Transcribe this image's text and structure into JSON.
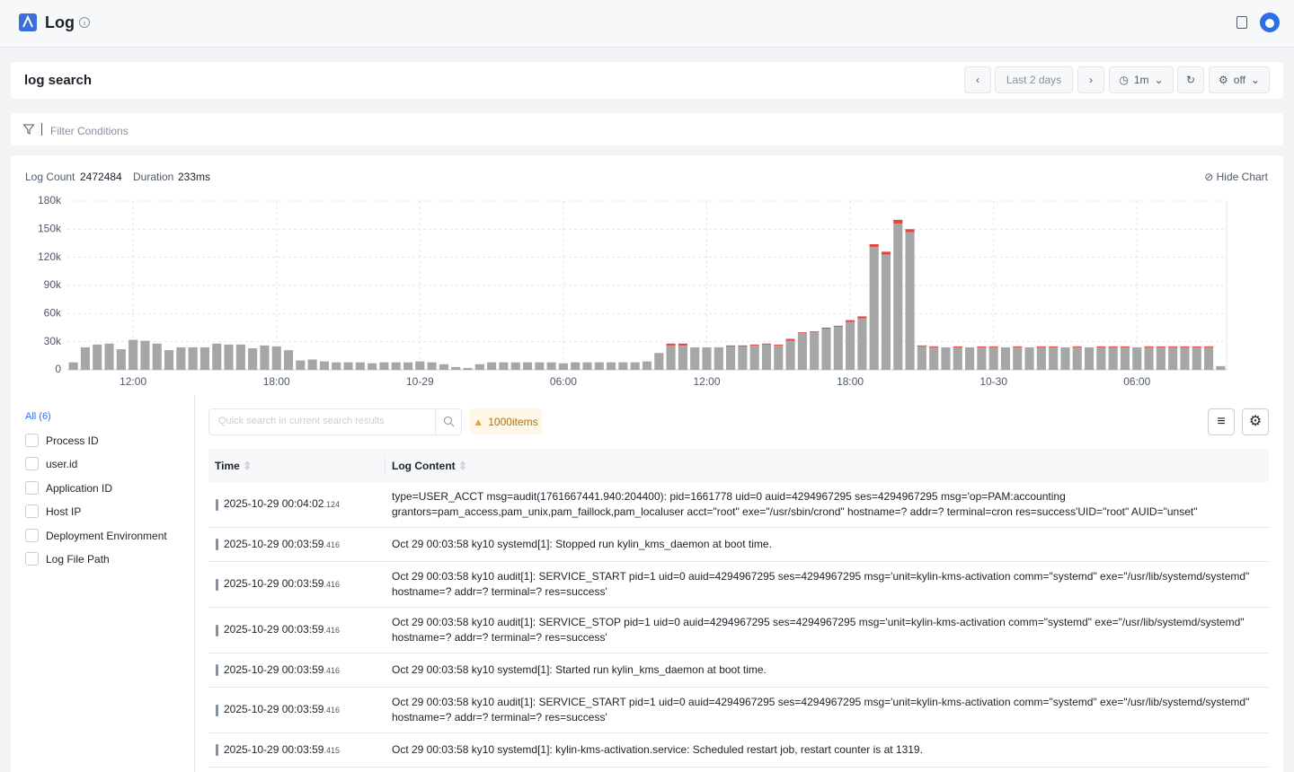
{
  "header": {
    "title": "Log"
  },
  "toolbar": {
    "title": "log search",
    "range": "Last 2 days",
    "interval": "1m",
    "refresh": "off"
  },
  "filter": {
    "placeholder": "Filter Conditions"
  },
  "stats": {
    "count_label": "Log Count",
    "count": "2472484",
    "duration_label": "Duration",
    "duration": "233ms",
    "hide_chart": "Hide Chart"
  },
  "sidebar": {
    "all": "All (6)",
    "fields": [
      "Process ID",
      "user.id",
      "Application ID",
      "Host IP",
      "Deployment Environment",
      "Log File Path"
    ]
  },
  "search": {
    "placeholder": "Quick search in current search results",
    "badge": "1000items"
  },
  "table": {
    "columns": [
      "Time",
      "Log Content"
    ],
    "rows": [
      {
        "time": "2025-10-29 00:04:02",
        "ms": ".124",
        "content": "type=USER_ACCT msg=audit(1761667441.940:204400): pid=1661778 uid=0 auid=4294967295 ses=4294967295 msg='op=PAM:accounting grantors=pam_access,pam_unix,pam_faillock,pam_localuser acct=\"root\" exe=\"/usr/sbin/crond\" hostname=? addr=? terminal=cron res=success'UID=\"root\" AUID=\"unset\""
      },
      {
        "time": "2025-10-29 00:03:59",
        "ms": ".416",
        "content": "Oct 29 00:03:58 ky10 systemd[1]: Stopped run kylin_kms_daemon at boot time."
      },
      {
        "time": "2025-10-29 00:03:59",
        "ms": ".416",
        "content": "Oct 29 00:03:58 ky10 audit[1]: SERVICE_START pid=1 uid=0 auid=4294967295 ses=4294967295 msg='unit=kylin-kms-activation comm=\"systemd\" exe=\"/usr/lib/systemd/systemd\" hostname=? addr=? terminal=? res=success'"
      },
      {
        "time": "2025-10-29 00:03:59",
        "ms": ".416",
        "content": "Oct 29 00:03:58 ky10 audit[1]: SERVICE_STOP pid=1 uid=0 auid=4294967295 ses=4294967295 msg='unit=kylin-kms-activation comm=\"systemd\" exe=\"/usr/lib/systemd/systemd\" hostname=? addr=? terminal=? res=success'"
      },
      {
        "time": "2025-10-29 00:03:59",
        "ms": ".416",
        "content": "Oct 29 00:03:58 ky10 systemd[1]: Started run kylin_kms_daemon at boot time."
      },
      {
        "time": "2025-10-29 00:03:59",
        "ms": ".416",
        "content": "Oct 29 00:03:58 ky10 audit[1]: SERVICE_START pid=1 uid=0 auid=4294967295 ses=4294967295 msg='unit=kylin-kms-activation comm=\"systemd\" exe=\"/usr/lib/systemd/systemd\" hostname=? addr=? terminal=? res=success'"
      },
      {
        "time": "2025-10-29 00:03:59",
        "ms": ".415",
        "content": "Oct 29 00:03:58 ky10 systemd[1]: kylin-kms-activation.service: Scheduled restart job, restart counter is at 1319."
      }
    ]
  },
  "chart_data": {
    "type": "stacked-bar",
    "categories": [
      null,
      null,
      null,
      null,
      null,
      "12:00",
      null,
      null,
      null,
      null,
      null,
      null,
      null,
      null,
      null,
      null,
      null,
      "18:00",
      null,
      null,
      null,
      null,
      null,
      null,
      null,
      null,
      null,
      null,
      null,
      "10-29",
      null,
      null,
      null,
      null,
      null,
      null,
      null,
      null,
      null,
      null,
      null,
      "06:00",
      null,
      null,
      null,
      null,
      null,
      null,
      null,
      null,
      null,
      null,
      null,
      "12:00",
      null,
      null,
      null,
      null,
      null,
      null,
      null,
      null,
      null,
      null,
      null,
      "18:00",
      null,
      null,
      null,
      null,
      null,
      null,
      null,
      null,
      null,
      null,
      null,
      "10-30",
      null,
      null,
      null,
      null,
      null,
      null,
      null,
      null,
      null,
      null,
      null,
      "06:00",
      null,
      null,
      null,
      null,
      null,
      null,
      null
    ],
    "series": [
      {
        "color": "#a6a6a6",
        "values": [
          8000,
          24000,
          27000,
          28000,
          22000,
          32000,
          31000,
          28000,
          21000,
          24000,
          24000,
          24000,
          28000,
          27000,
          27000,
          23000,
          26000,
          25000,
          21000,
          10000,
          11000,
          9000,
          8000,
          8000,
          8000,
          7000,
          8000,
          8000,
          8000,
          9000,
          8000,
          6000,
          3000,
          2000,
          6000,
          8000,
          8000,
          8000,
          8000,
          8000,
          8000,
          7000,
          8000,
          8000,
          8000,
          8000,
          8000,
          8000,
          9000,
          18000,
          26000,
          26000,
          24000,
          24000,
          24000,
          25000,
          25000,
          26000,
          27000,
          26000,
          31000,
          39000,
          40000,
          44000,
          46000,
          51000,
          55000,
          131000,
          123000,
          156000,
          147000,
          25000,
          24000,
          24000,
          24000,
          24000,
          24000,
          24000,
          24000,
          24000,
          24000,
          24000,
          24000,
          24000,
          24000,
          24000,
          24000,
          24000,
          24000,
          24000,
          24000,
          24000,
          24000,
          24000,
          24000,
          24000,
          4000
        ]
      },
      {
        "color": "#e0483e",
        "values": [
          0,
          0,
          0,
          0,
          0,
          0,
          0,
          0,
          0,
          0,
          0,
          0,
          0,
          0,
          0,
          0,
          0,
          0,
          0,
          0,
          0,
          0,
          0,
          0,
          0,
          0,
          0,
          0,
          0,
          0,
          0,
          0,
          0,
          0,
          0,
          0,
          0,
          0,
          0,
          0,
          0,
          0,
          0,
          0,
          0,
          0,
          0,
          0,
          0,
          0,
          2000,
          2000,
          0,
          0,
          0,
          1000,
          1000,
          1000,
          1000,
          1000,
          2000,
          1000,
          1000,
          1000,
          1000,
          2000,
          2000,
          3000,
          3000,
          4000,
          3000,
          1000,
          1000,
          0,
          1000,
          0,
          1000,
          1000,
          0,
          1000,
          0,
          1000,
          1000,
          0,
          1000,
          0,
          1000,
          1000,
          1000,
          0,
          1000,
          1000,
          1000,
          1000,
          1000,
          1000,
          0
        ]
      }
    ],
    "ylim": [
      0,
      180000
    ],
    "yticks": [
      0,
      {
        "value": 30000,
        "label": "30k"
      },
      {
        "value": 60000,
        "label": "60k"
      },
      {
        "value": 90000,
        "label": "90k"
      },
      {
        "value": 120000,
        "label": "120k"
      },
      {
        "value": 150000,
        "label": "150k"
      },
      {
        "value": 180000,
        "label": "180k"
      }
    ],
    "grid": true
  }
}
